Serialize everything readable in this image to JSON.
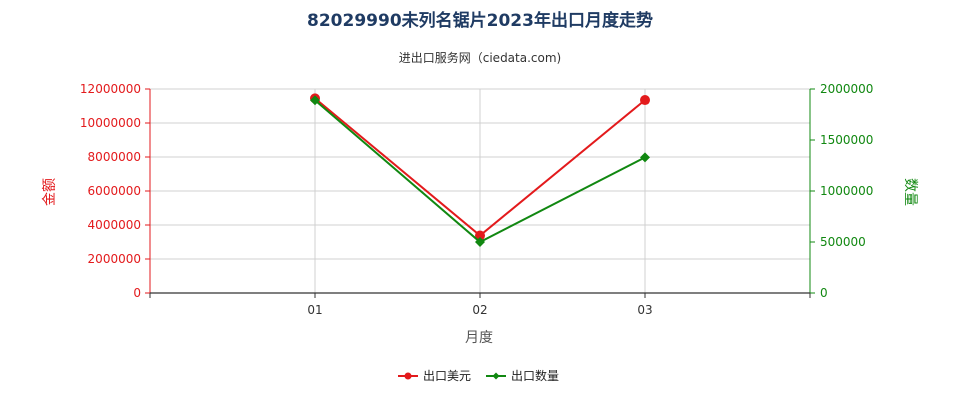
{
  "chart_data": {
    "type": "line",
    "title": "82029990未列名锯片2023年出口月度走势",
    "subtitle": "进出口服务网（ciedata.com)",
    "xlabel": "月度",
    "ylabel_left": "金额",
    "ylabel_right": "数量",
    "categories": [
      "01",
      "02",
      "03"
    ],
    "y_left": {
      "min": 0,
      "max": 12000000,
      "ticks": [
        "0",
        "2000000",
        "4000000",
        "6000000",
        "8000000",
        "10000000",
        "12000000"
      ]
    },
    "y_right": {
      "min": 0,
      "max": 2000000,
      "ticks": [
        "0",
        "500000",
        "1000000",
        "1500000",
        "2000000"
      ]
    },
    "series": [
      {
        "name": "出口美元",
        "axis": "left",
        "color": "#e31a1c",
        "marker": "circle",
        "values": [
          11450000,
          3380000,
          11350000
        ]
      },
      {
        "name": "出口数量",
        "axis": "right",
        "color": "#118811",
        "marker": "diamond",
        "values": [
          1890000,
          500000,
          1330000
        ]
      }
    ],
    "grid": true,
    "legend_position": "bottom-center"
  }
}
